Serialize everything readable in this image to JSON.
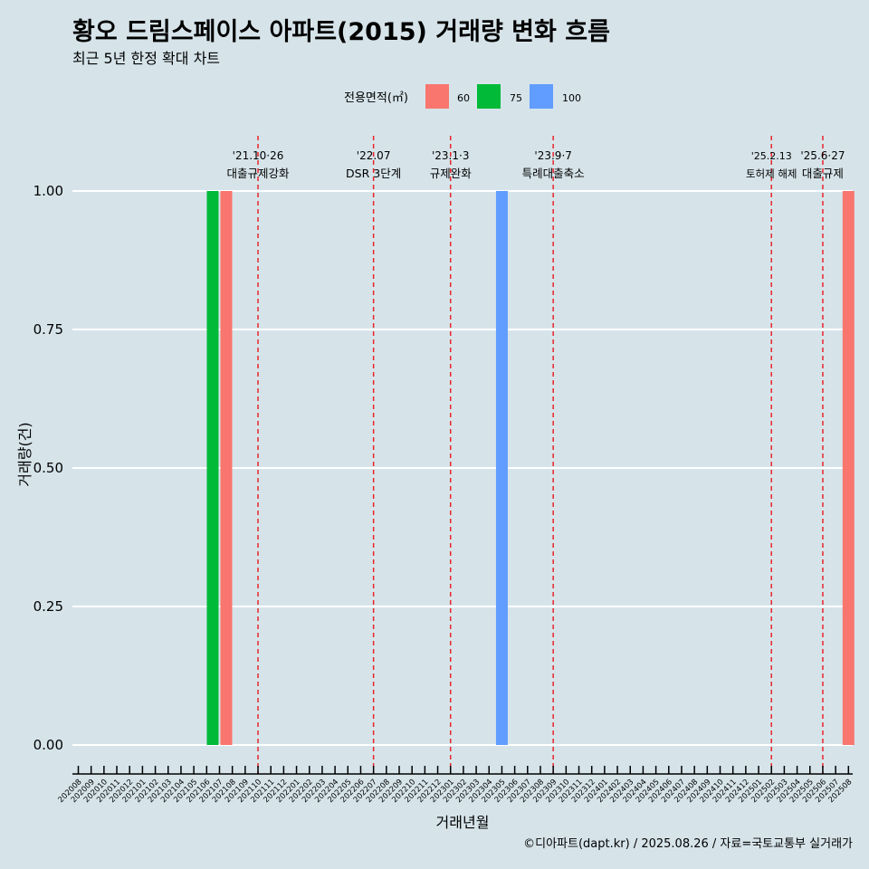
{
  "chart_data": {
    "type": "bar",
    "title": "황오 드림스페이스 아파트(2015) 거래량 변화 흐름",
    "subtitle": "최근 5년 한정 확대 차트",
    "xlabel": "거래년월",
    "ylabel": "거래량(건)",
    "ylim": [
      0,
      1
    ],
    "yticks": [
      "0.00",
      "0.25",
      "0.50",
      "0.75",
      "1.00"
    ],
    "grid": "horizontal",
    "legend": {
      "title": "전용면적(㎡)",
      "placement": "top",
      "items": [
        {
          "name": "60",
          "color": "#F8766D"
        },
        {
          "name": "75",
          "color": "#00BA38"
        },
        {
          "name": "100",
          "color": "#619CFF"
        }
      ]
    },
    "categories": [
      "202008",
      "202009",
      "202010",
      "202011",
      "202012",
      "202101",
      "202102",
      "202103",
      "202104",
      "202105",
      "202106",
      "202107",
      "202108",
      "202109",
      "202110",
      "202111",
      "202112",
      "202201",
      "202202",
      "202203",
      "202204",
      "202205",
      "202206",
      "202207",
      "202208",
      "202209",
      "202210",
      "202211",
      "202212",
      "202301",
      "202302",
      "202303",
      "202304",
      "202305",
      "202306",
      "202307",
      "202308",
      "202309",
      "202310",
      "202311",
      "202312",
      "202401",
      "202402",
      "202403",
      "202404",
      "202405",
      "202406",
      "202407",
      "202408",
      "202409",
      "202410",
      "202411",
      "202412",
      "202501",
      "202502",
      "202503",
      "202504",
      "202505",
      "202506",
      "202507",
      "202508"
    ],
    "bars": [
      {
        "month": "202107",
        "area": "75",
        "value": 1
      },
      {
        "month": "202107",
        "area": "60",
        "value": 1
      },
      {
        "month": "202305",
        "area": "100",
        "value": 1
      },
      {
        "month": "202508",
        "area": "60",
        "value": 1
      }
    ],
    "events": [
      {
        "month": "202110",
        "date": "'21.10·26",
        "label": "대출규제강화",
        "color": "#e8262a"
      },
      {
        "month": "202207",
        "date": "'22.07",
        "label": "DSR 3단계",
        "color": "#e8262a"
      },
      {
        "month": "202301",
        "date": "'23.1·3",
        "label": "규제완화",
        "color": "#e8262a"
      },
      {
        "month": "202309",
        "date": "'23.9·7",
        "label": "특례대출축소",
        "color": "#e8262a"
      },
      {
        "month": "202502",
        "date": "'25.2.13",
        "label": "토허제 해제",
        "color": "#e8262a"
      },
      {
        "month": "202506",
        "date": "'25.6·27",
        "label": "대출규제",
        "color": "#e8262a"
      }
    ]
  },
  "caption": "©디아파트(dapt.kr) / 2025.08.26 / 자료=국토교통부 실거래가"
}
